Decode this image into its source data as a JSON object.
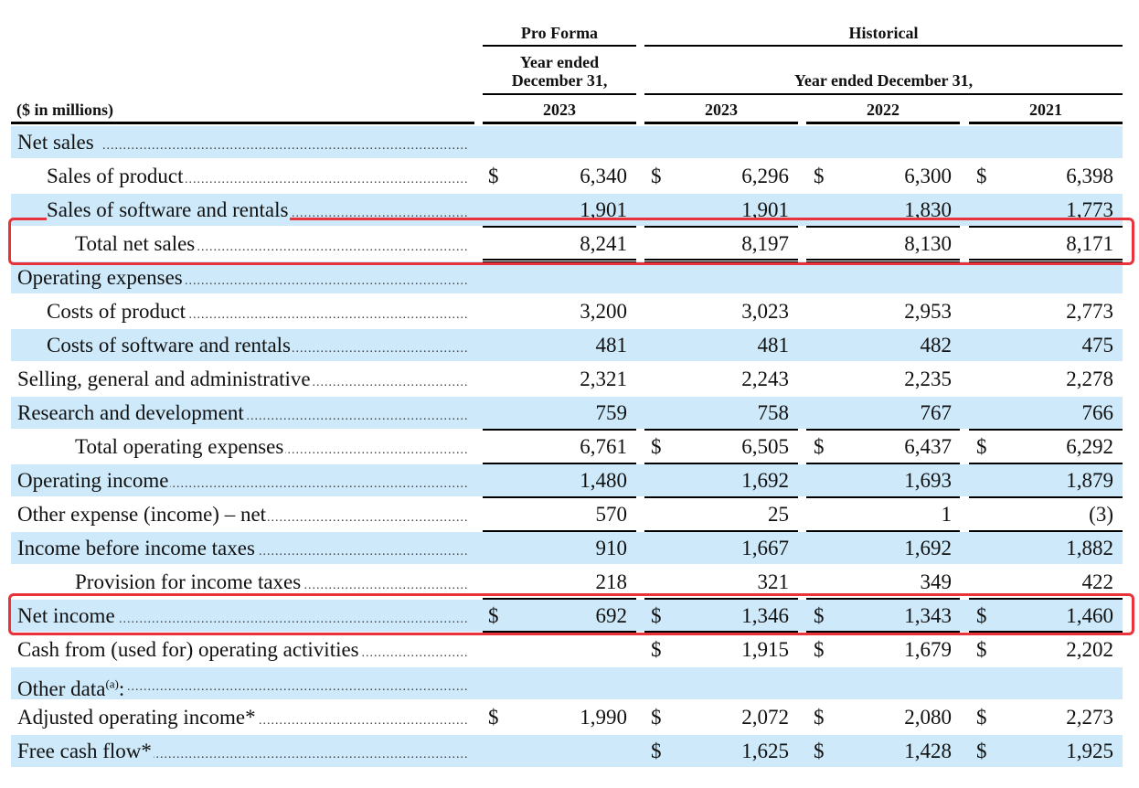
{
  "header": {
    "pro_forma": "Pro Forma",
    "historical": "Historical",
    "pf_year_line1": "Year ended",
    "pf_year_line2": "December 31,",
    "hist_year": "Year ended December 31,",
    "units": "($ in millions)",
    "col_pf": "2023",
    "col_2023": "2023",
    "col_2022": "2022",
    "col_2021": "2021"
  },
  "rows": [
    {
      "label": "Net sales",
      "indent": 0,
      "shade": true,
      "pf": "",
      "h23": "",
      "h22": "",
      "h21": "",
      "dollar": false
    },
    {
      "label": "Sales of product",
      "indent": 1,
      "shade": false,
      "pf": "6,340",
      "h23": "6,296",
      "h22": "6,300",
      "h21": "6,398",
      "dollar": true
    },
    {
      "label": "Sales of software and rentals",
      "indent": 1,
      "shade": true,
      "pf": "1,901",
      "h23": "1,901",
      "h22": "1,830",
      "h21": "1,773",
      "dollar": false
    },
    {
      "label": "Total net sales",
      "indent": 2,
      "shade": false,
      "pf": "8,241",
      "h23": "8,197",
      "h22": "8,130",
      "h21": "8,171",
      "dollar": false
    },
    {
      "label": "Operating expenses",
      "indent": 0,
      "shade": true,
      "pf": "",
      "h23": "",
      "h22": "",
      "h21": "",
      "dollar": false
    },
    {
      "label": "Costs of product",
      "indent": 1,
      "shade": false,
      "pf": "3,200",
      "h23": "3,023",
      "h22": "2,953",
      "h21": "2,773",
      "dollar": false
    },
    {
      "label": "Costs of software and rentals",
      "indent": 1,
      "shade": true,
      "pf": "481",
      "h23": "481",
      "h22": "482",
      "h21": "475",
      "dollar": false
    },
    {
      "label": "Selling, general and administrative",
      "indent": 0,
      "shade": false,
      "pf": "2,321",
      "h23": "2,243",
      "h22": "2,235",
      "h21": "2,278",
      "dollar": false
    },
    {
      "label": "Research and development",
      "indent": 0,
      "shade": true,
      "pf": "759",
      "h23": "758",
      "h22": "767",
      "h21": "766",
      "dollar": false
    },
    {
      "label": "Total operating expenses",
      "indent": 2,
      "shade": false,
      "pf": "6,761",
      "h23": "6,505",
      "h22": "6,437",
      "h21": "6,292",
      "dollar": "hist"
    },
    {
      "label": "Operating income",
      "indent": 0,
      "shade": true,
      "pf": "1,480",
      "h23": "1,692",
      "h22": "1,693",
      "h21": "1,879",
      "dollar": false
    },
    {
      "label": "Other expense (income) – net",
      "indent": 0,
      "shade": false,
      "pf": "570",
      "h23": "25",
      "h22": "1",
      "h21": "(3)",
      "dollar": false
    },
    {
      "label": "Income before income taxes",
      "indent": 0,
      "shade": true,
      "pf": "910",
      "h23": "1,667",
      "h22": "1,692",
      "h21": "1,882",
      "dollar": false
    },
    {
      "label": "Provision for income taxes",
      "indent": 2,
      "shade": false,
      "pf": "218",
      "h23": "321",
      "h22": "349",
      "h21": "422",
      "dollar": false
    },
    {
      "label": "Net income",
      "indent": 0,
      "shade": true,
      "pf": "692",
      "h23": "1,346",
      "h22": "1,343",
      "h21": "1,460",
      "dollar": true
    },
    {
      "label": "Cash from (used for) operating activities",
      "indent": 0,
      "shade": false,
      "pf": "",
      "h23": "1,915",
      "h22": "1,679",
      "h21": "2,202",
      "dollar": "hist"
    },
    {
      "label": "Other data",
      "sup": "(a)",
      "suffix": ":",
      "indent": 0,
      "shade": true,
      "pf": "",
      "h23": "",
      "h22": "",
      "h21": "",
      "dollar": false
    },
    {
      "label": "Adjusted operating income*",
      "indent": 0,
      "shade": false,
      "pf": "1,990",
      "h23": "2,072",
      "h22": "2,080",
      "h21": "2,273",
      "dollar": true
    },
    {
      "label": "Free cash flow*",
      "indent": 0,
      "shade": true,
      "pf": "",
      "h23": "1,625",
      "h22": "1,428",
      "h21": "1,925",
      "dollar": "hist"
    }
  ],
  "currency_symbol": "$",
  "highlight_color": "#e8333b",
  "shade_color": "#cde9fa"
}
